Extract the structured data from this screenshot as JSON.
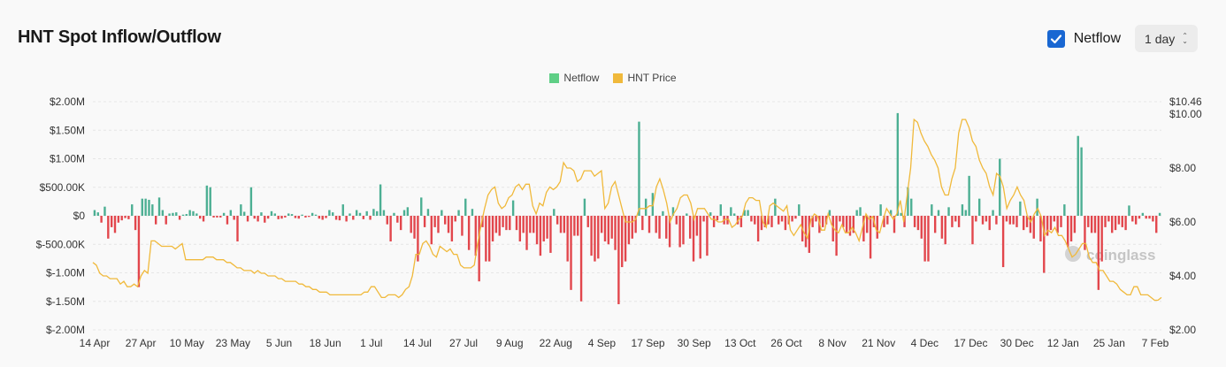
{
  "header": {
    "title": "HNT Spot Inflow/Outflow",
    "netflow_toggle_label": "Netflow",
    "netflow_checked": true,
    "period_value": "1 day"
  },
  "watermark": "coinglass",
  "colors": {
    "inflow": "#4caf93",
    "outflow": "#e2464c",
    "price": "#f0b93b",
    "checkbox": "#1967d2"
  },
  "chart_data": {
    "type": "bar",
    "title": "HNT Spot Inflow/Outflow",
    "legend": [
      "Netflow",
      "HNT Price"
    ],
    "legend_position": "top-center",
    "grid": true,
    "x_ticks": [
      "14 Apr",
      "27 Apr",
      "10 May",
      "23 May",
      "5 Jun",
      "18 Jun",
      "1 Jul",
      "14 Jul",
      "27 Jul",
      "9 Aug",
      "22 Aug",
      "4 Sep",
      "17 Sep",
      "30 Sep",
      "13 Oct",
      "26 Oct",
      "8 Nov",
      "21 Nov",
      "4 Dec",
      "17 Dec",
      "30 Dec",
      "12 Jan",
      "25 Jan",
      "7 Feb"
    ],
    "y_left_ticks": [
      "$2.00M",
      "$1.50M",
      "$1.00M",
      "$500.00K",
      "$0",
      "$-500.00K",
      "$-1.00M",
      "$-1.50M",
      "$-2.00M"
    ],
    "y_left_range": [
      -2000000,
      2000000
    ],
    "y_right_ticks": [
      "$10.46",
      "$10.00",
      "$8.00",
      "$6.00",
      "$4.00",
      "$2.00"
    ],
    "y_right_range": [
      2.0,
      10.46
    ],
    "series": [
      {
        "name": "Netflow",
        "unit": "USD",
        "values": [
          100000,
          60000,
          -120000,
          160000,
          -400000,
          -200000,
          -300000,
          -120000,
          -80000,
          -40000,
          -60000,
          200000,
          -250000,
          -1250000,
          300000,
          300000,
          280000,
          200000,
          -150000,
          320000,
          100000,
          -150000,
          40000,
          50000,
          60000,
          -70000,
          20000,
          30000,
          100000,
          80000,
          40000,
          -50000,
          -100000,
          530000,
          500000,
          -30000,
          -30000,
          -30000,
          50000,
          -150000,
          100000,
          -70000,
          -450000,
          200000,
          70000,
          -100000,
          500000,
          -50000,
          -100000,
          60000,
          -120000,
          -50000,
          80000,
          40000,
          -60000,
          -50000,
          -30000,
          40000,
          30000,
          -40000,
          -50000,
          20000,
          -30000,
          -20000,
          50000,
          20000,
          -50000,
          -70000,
          -40000,
          100000,
          60000,
          -70000,
          -80000,
          200000,
          -100000,
          40000,
          -70000,
          100000,
          50000,
          -60000,
          80000,
          -70000,
          120000,
          80000,
          550000,
          100000,
          -150000,
          -450000,
          50000,
          -120000,
          -250000,
          100000,
          150000,
          -300000,
          -400000,
          -800000,
          320000,
          -200000,
          120000,
          -500000,
          -200000,
          -300000,
          100000,
          -150000,
          -300000,
          -450000,
          -100000,
          100000,
          -350000,
          300000,
          -600000,
          120000,
          -700000,
          -1150000,
          -200000,
          -800000,
          -800000,
          -450000,
          -300000,
          -350000,
          -200000,
          -250000,
          -250000,
          270000,
          -250000,
          -450000,
          -300000,
          -600000,
          -300000,
          -300000,
          -500000,
          -700000,
          -450000,
          -400000,
          -650000,
          120000,
          -150000,
          -300000,
          -300000,
          -800000,
          -1300000,
          -350000,
          -350000,
          -1500000,
          300000,
          -200000,
          -700000,
          -800000,
          -750000,
          -300000,
          -450000,
          -500000,
          -400000,
          -600000,
          -1550000,
          -900000,
          -800000,
          -500000,
          -400000,
          -300000,
          1650000,
          -250000,
          300000,
          -300000,
          400000,
          -300000,
          -400000,
          80000,
          -400000,
          -550000,
          150000,
          -150000,
          -550000,
          -500000,
          40000,
          -400000,
          -800000,
          -350000,
          -750000,
          -100000,
          -700000,
          60000,
          -200000,
          -80000,
          200000,
          -150000,
          -150000,
          150000,
          40000,
          -150000,
          -200000,
          100000,
          100000,
          -100000,
          -150000,
          -450000,
          -250000,
          -200000,
          -150000,
          -200000,
          300000,
          -150000,
          -100000,
          -250000,
          -150000,
          -100000,
          -50000,
          200000,
          -450000,
          -550000,
          -650000,
          -200000,
          -100000,
          -300000,
          -200000,
          -150000,
          100000,
          -450000,
          -700000,
          -100000,
          -200000,
          -300000,
          -350000,
          -300000,
          100000,
          150000,
          -450000,
          -300000,
          -750000,
          -200000,
          -400000,
          200000,
          -200000,
          -150000,
          100000,
          -300000,
          1800000,
          50000,
          -200000,
          500000,
          300000,
          -200000,
          -250000,
          -400000,
          -800000,
          -800000,
          200000,
          -300000,
          100000,
          -400000,
          -500000,
          150000,
          -200000,
          -100000,
          -200000,
          200000,
          100000,
          700000,
          -500000,
          -100000,
          300000,
          -150000,
          -100000,
          -250000,
          100000,
          -150000,
          1000000,
          -900000,
          -100000,
          -150000,
          -150000,
          -200000,
          250000,
          -250000,
          -200000,
          -300000,
          -400000,
          300000,
          -450000,
          -1000000,
          -350000,
          -250000,
          -100000,
          -300000,
          -200000,
          200000,
          -550000,
          -450000,
          -300000,
          1400000,
          1200000,
          -600000,
          -200000,
          -300000,
          -300000,
          -1300000,
          -800000,
          -200000,
          -100000,
          -300000,
          -250000,
          -150000,
          -200000,
          -250000,
          180000,
          -100000,
          -150000,
          -50000,
          50000,
          -50000,
          -50000,
          -100000,
          -300000,
          50000
        ]
      },
      {
        "name": "HNT Price",
        "unit": "USD",
        "values": [
          4.5,
          4.4,
          4.1,
          4.0,
          4.0,
          3.9,
          3.9,
          3.9,
          3.7,
          3.8,
          3.6,
          3.6,
          3.7,
          3.6,
          4.0,
          4.2,
          4.1,
          5.3,
          5.3,
          5.2,
          5.1,
          5.1,
          5.1,
          5.1,
          5.0,
          5.1,
          5.2,
          4.6,
          4.6,
          4.6,
          4.6,
          4.6,
          4.6,
          4.7,
          4.7,
          4.7,
          4.6,
          4.6,
          4.6,
          4.5,
          4.5,
          4.4,
          4.3,
          4.3,
          4.2,
          4.2,
          4.2,
          4.1,
          4.2,
          4.1,
          4.1,
          4.0,
          4.0,
          4.0,
          3.9,
          3.9,
          3.8,
          3.8,
          3.8,
          3.8,
          3.7,
          3.7,
          3.6,
          3.6,
          3.5,
          3.5,
          3.4,
          3.4,
          3.4,
          3.3,
          3.3,
          3.3,
          3.3,
          3.3,
          3.3,
          3.3,
          3.3,
          3.3,
          3.3,
          3.4,
          3.4,
          3.6,
          3.6,
          3.4,
          3.2,
          3.2,
          3.3,
          3.3,
          3.3,
          3.2,
          3.3,
          3.5,
          3.6,
          4.0,
          4.8,
          4.8,
          5.2,
          5.3,
          5.1,
          4.8,
          4.7,
          5.1,
          5.0,
          4.9,
          5.0,
          4.8,
          4.8,
          4.4,
          4.3,
          4.3,
          4.3,
          4.4,
          5.2,
          5.9,
          6.5,
          7.0,
          7.2,
          7.3,
          6.7,
          6.5,
          6.6,
          6.9,
          7.0,
          7.3,
          7.4,
          7.2,
          7.4,
          7.4,
          6.6,
          6.3,
          6.7,
          6.6,
          7.1,
          7.3,
          7.2,
          7.3,
          7.5,
          8.2,
          8.0,
          8.0,
          7.9,
          7.5,
          7.6,
          7.9,
          7.9,
          7.9,
          7.7,
          7.8,
          7.9,
          6.5,
          6.7,
          7.3,
          7.5,
          7.0,
          6.5,
          6.0,
          6.0,
          6.0,
          6.1,
          6.5,
          6.5,
          6.5,
          6.6,
          6.6,
          7.3,
          7.6,
          7.2,
          6.7,
          6.0,
          6.3,
          6.5,
          6.9,
          7.0,
          7.0,
          6.7,
          6.1,
          6.5,
          6.5,
          6.5,
          6.3,
          6.1,
          6.1,
          6.0,
          6.0,
          6.1,
          6.1,
          5.8,
          5.9,
          6.1,
          6.2,
          6.7,
          6.9,
          6.9,
          6.8,
          6.8,
          6.0,
          5.8,
          6.6,
          6.7,
          6.6,
          6.5,
          6.4,
          6.6,
          5.7,
          5.5,
          5.7,
          5.9,
          5.6,
          5.4,
          6.1,
          6.3,
          6.2,
          5.7,
          5.7,
          6.3,
          5.9,
          5.7,
          5.6,
          5.9,
          5.6,
          5.6,
          5.8,
          5.6,
          5.3,
          5.8,
          6.3,
          6.1,
          6.2,
          5.7,
          5.6,
          6.1,
          6.5,
          6.3,
          6.1,
          6.3,
          6.8,
          6.0,
          7.0,
          8.0,
          9.8,
          9.7,
          9.3,
          9.0,
          8.8,
          8.5,
          8.3,
          8.0,
          7.3,
          7.0,
          7.0,
          7.6,
          8.0,
          9.3,
          9.8,
          9.8,
          9.5,
          9.0,
          8.8,
          8.3,
          8.0,
          7.8,
          7.3,
          7.0,
          7.8,
          7.7,
          7.3,
          6.5,
          6.8,
          7.0,
          7.3,
          7.0,
          6.8,
          6.2,
          6.0,
          6.3,
          6.5,
          6.2,
          5.5,
          5.7,
          5.6,
          5.8,
          5.5,
          5.5,
          5.3,
          5.0,
          4.7,
          4.8,
          5.0,
          5.2,
          5.2,
          4.7,
          4.5,
          4.5,
          4.2,
          4.2,
          4.0,
          3.8,
          3.8,
          3.7,
          3.5,
          3.4,
          3.3,
          3.3,
          3.6,
          3.6,
          3.3,
          3.3,
          3.3,
          3.2,
          3.1,
          3.1,
          3.2
        ]
      }
    ]
  }
}
